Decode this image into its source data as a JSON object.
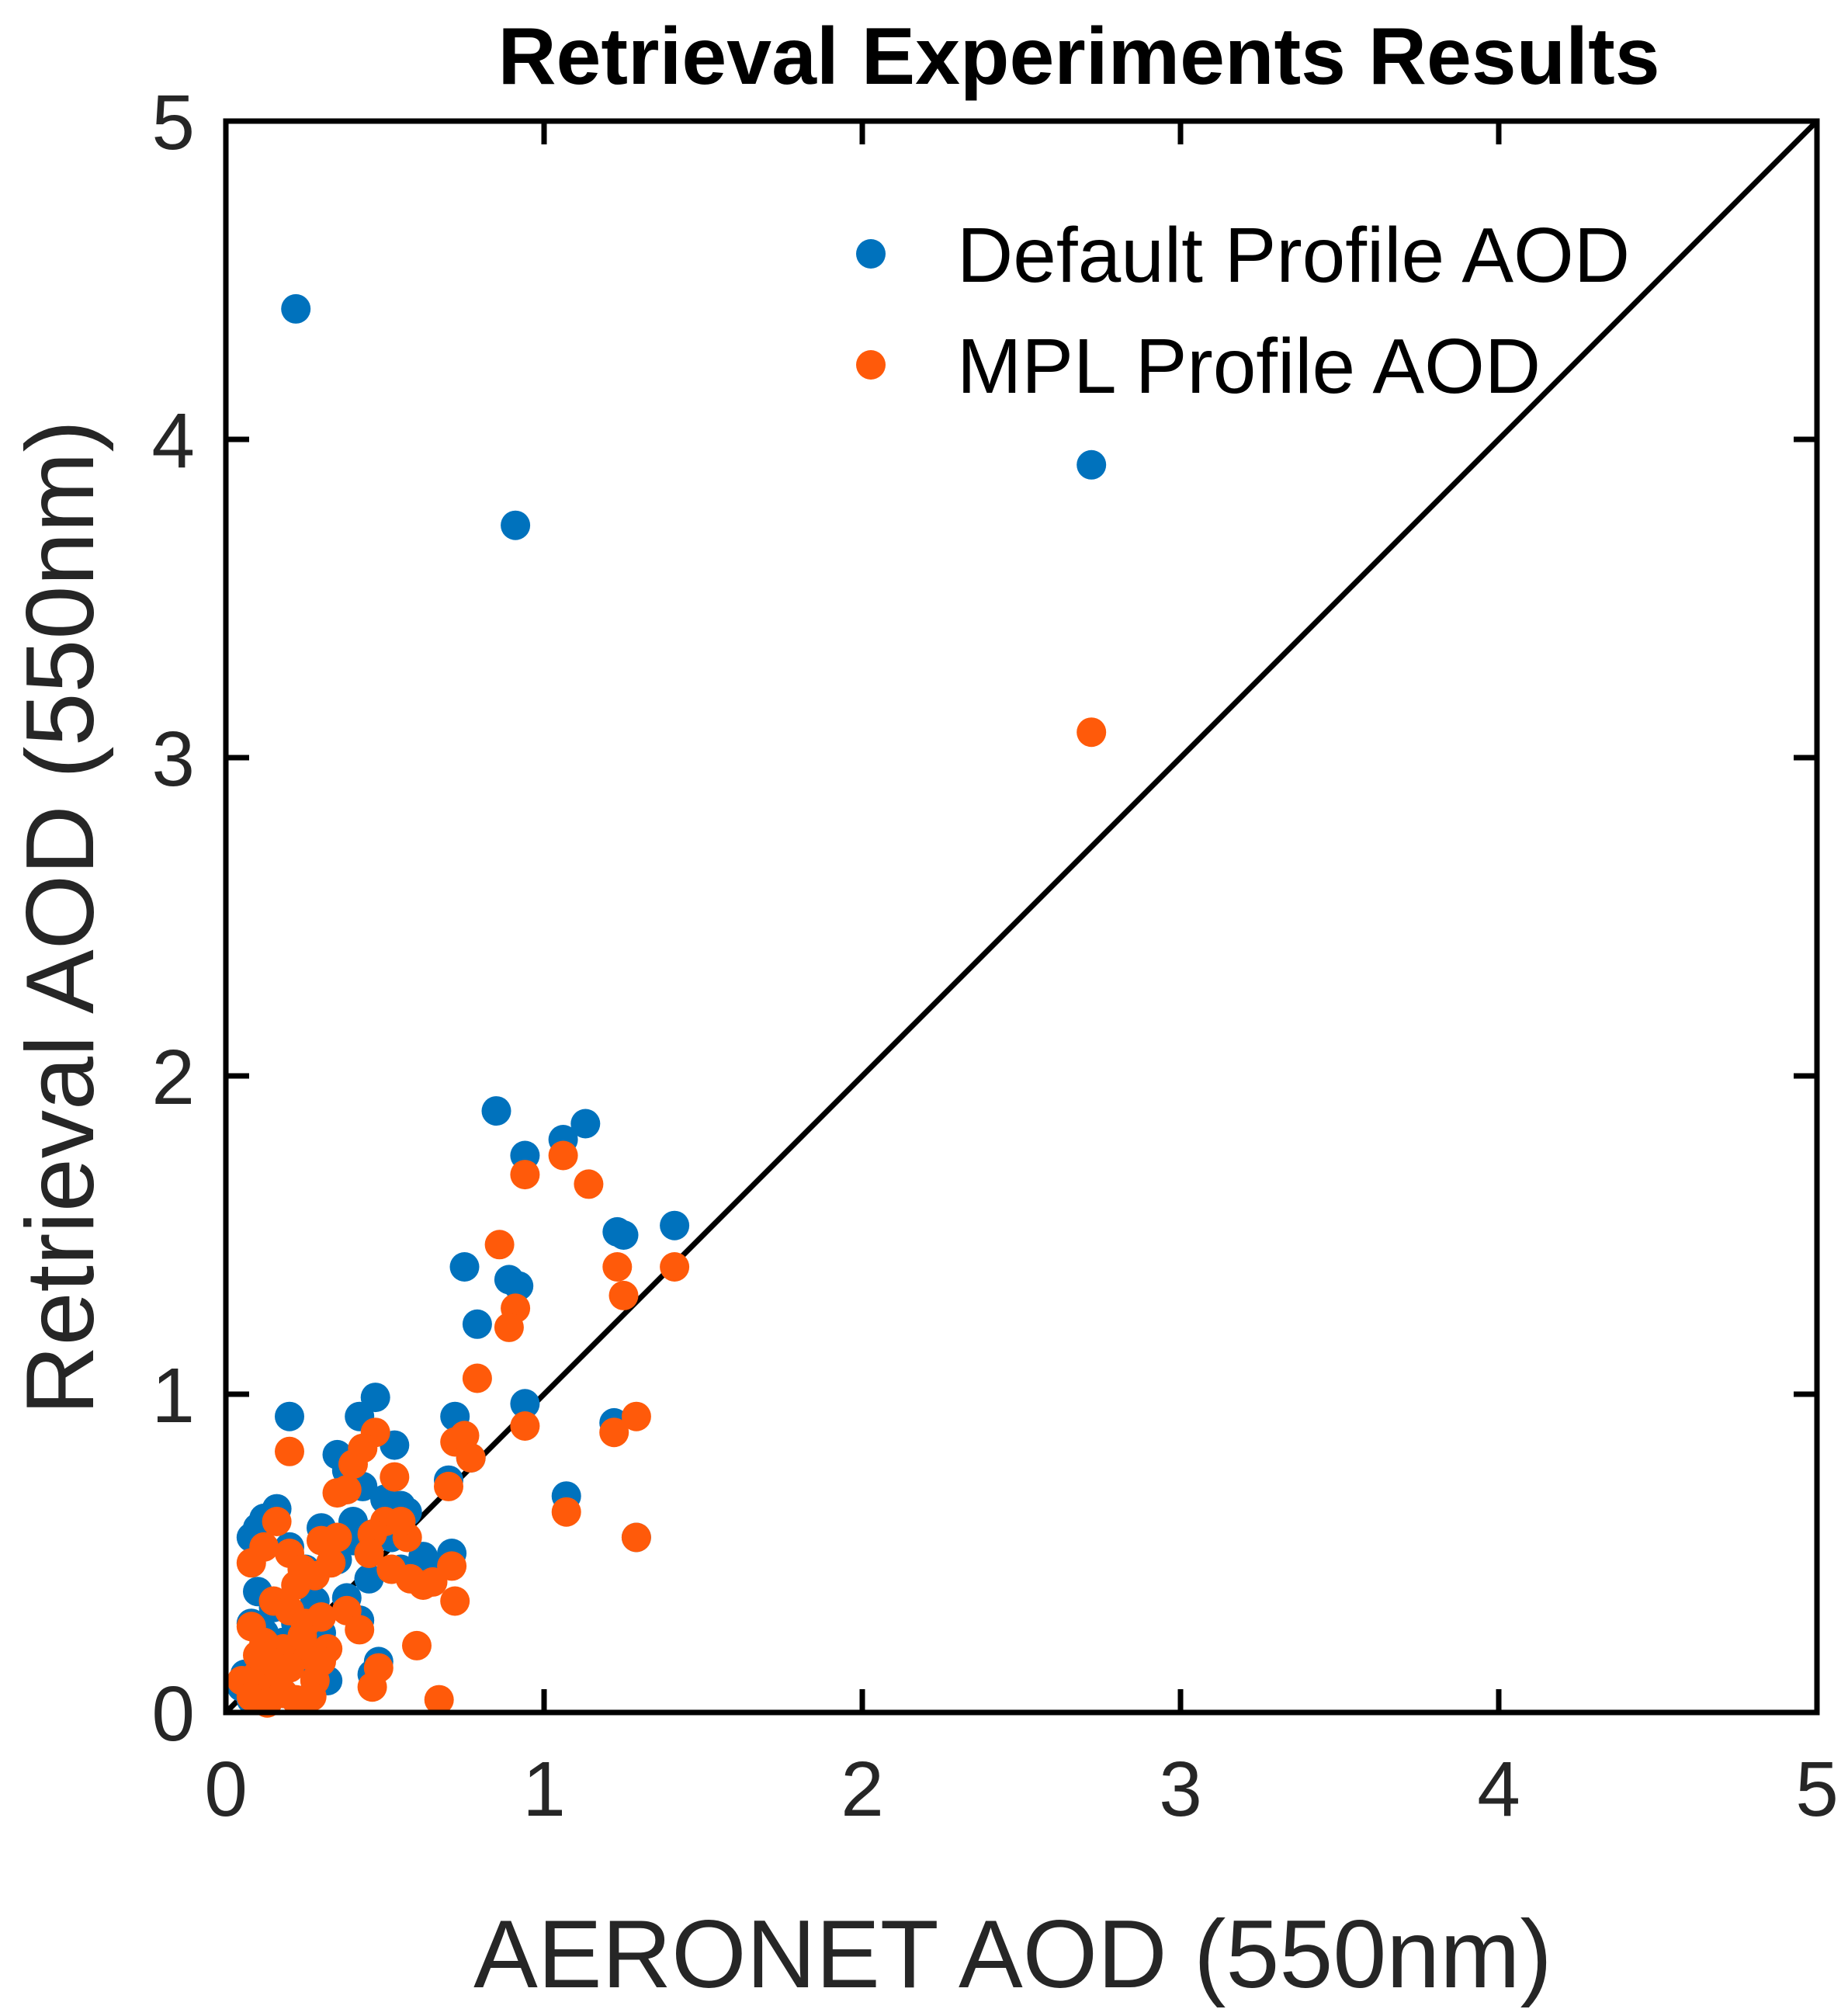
{
  "chart_data": {
    "type": "scatter",
    "title": "Retrieval Experiments Results",
    "xlabel": "AERONET AOD (550nm)",
    "ylabel": "Retrieval AOD (550nm)",
    "xlim": [
      0,
      5
    ],
    "ylim": [
      0,
      5
    ],
    "xticks": [
      "0",
      "1",
      "2",
      "3",
      "4",
      "5"
    ],
    "yticks": [
      "0",
      "1",
      "2",
      "3",
      "4",
      "5"
    ],
    "grid": false,
    "legend_position": "top-right",
    "reference_line": {
      "name": "1:1 line",
      "x": [
        0,
        5
      ],
      "y": [
        0,
        5
      ],
      "color": "#000000"
    },
    "series": [
      {
        "name": "Default Profile AOD",
        "color": "#0072BD",
        "points": [
          [
            0.22,
            4.41
          ],
          [
            0.91,
            3.73
          ],
          [
            2.72,
            3.92
          ],
          [
            0.85,
            1.89
          ],
          [
            0.94,
            1.75
          ],
          [
            1.06,
            1.8
          ],
          [
            1.13,
            1.85
          ],
          [
            1.23,
            1.51
          ],
          [
            1.25,
            1.5
          ],
          [
            1.41,
            1.53
          ],
          [
            0.75,
            1.4
          ],
          [
            0.89,
            1.36
          ],
          [
            0.92,
            1.34
          ],
          [
            0.79,
            1.22
          ],
          [
            0.94,
            0.97
          ],
          [
            0.72,
            0.93
          ],
          [
            0.7,
            0.73
          ],
          [
            0.77,
            0.8
          ],
          [
            1.22,
            0.91
          ],
          [
            1.07,
            0.68
          ],
          [
            1.29,
            0.55
          ],
          [
            0.2,
            0.93
          ],
          [
            0.47,
            0.99
          ],
          [
            0.42,
            0.93
          ],
          [
            0.53,
            0.84
          ],
          [
            0.35,
            0.81
          ],
          [
            0.38,
            0.76
          ],
          [
            0.43,
            0.71
          ],
          [
            0.5,
            0.67
          ],
          [
            0.55,
            0.65
          ],
          [
            0.12,
            0.61
          ],
          [
            0.16,
            0.64
          ],
          [
            0.08,
            0.55
          ],
          [
            0.1,
            0.58
          ],
          [
            0.2,
            0.52
          ],
          [
            0.3,
            0.58
          ],
          [
            0.4,
            0.6
          ],
          [
            0.46,
            0.56
          ],
          [
            0.52,
            0.55
          ],
          [
            0.57,
            0.63
          ],
          [
            0.25,
            0.45
          ],
          [
            0.35,
            0.48
          ],
          [
            0.45,
            0.42
          ],
          [
            0.55,
            0.45
          ],
          [
            0.6,
            0.44
          ],
          [
            0.63,
            0.46
          ],
          [
            0.71,
            0.5
          ],
          [
            0.1,
            0.38
          ],
          [
            0.15,
            0.33
          ],
          [
            0.22,
            0.3
          ],
          [
            0.28,
            0.35
          ],
          [
            0.38,
            0.36
          ],
          [
            0.08,
            0.28
          ],
          [
            0.12,
            0.25
          ],
          [
            0.18,
            0.22
          ],
          [
            0.25,
            0.2
          ],
          [
            0.3,
            0.25
          ],
          [
            0.42,
            0.29
          ],
          [
            0.48,
            0.16
          ],
          [
            0.46,
            0.12
          ],
          [
            0.06,
            0.12
          ],
          [
            0.1,
            0.08
          ],
          [
            0.15,
            0.1
          ],
          [
            0.2,
            0.15
          ],
          [
            0.28,
            0.12
          ],
          [
            0.08,
            0.04
          ],
          [
            0.12,
            0.05
          ],
          [
            0.05,
            0.08
          ],
          [
            0.18,
            0.06
          ],
          [
            0.25,
            0.04
          ],
          [
            0.32,
            0.1
          ],
          [
            0.22,
            0.28
          ],
          [
            0.27,
            0.32
          ],
          [
            0.4,
            0.54
          ],
          [
            0.62,
            0.49
          ]
        ]
      },
      {
        "name": "MPL Profile AOD",
        "color": "#FF5A0A",
        "points": [
          [
            2.72,
            3.08
          ],
          [
            0.86,
            1.47
          ],
          [
            0.94,
            1.69
          ],
          [
            1.06,
            1.75
          ],
          [
            1.14,
            1.66
          ],
          [
            1.23,
            1.4
          ],
          [
            1.25,
            1.31
          ],
          [
            1.41,
            1.4
          ],
          [
            0.91,
            1.27
          ],
          [
            0.89,
            1.21
          ],
          [
            0.79,
            1.05
          ],
          [
            0.94,
            0.9
          ],
          [
            1.22,
            0.88
          ],
          [
            1.29,
            0.93
          ],
          [
            1.07,
            0.63
          ],
          [
            1.29,
            0.55
          ],
          [
            0.7,
            0.71
          ],
          [
            0.72,
            0.85
          ],
          [
            0.75,
            0.87
          ],
          [
            0.77,
            0.8
          ],
          [
            0.2,
            0.82
          ],
          [
            0.47,
            0.88
          ],
          [
            0.43,
            0.83
          ],
          [
            0.4,
            0.78
          ],
          [
            0.38,
            0.7
          ],
          [
            0.35,
            0.69
          ],
          [
            0.53,
            0.74
          ],
          [
            0.5,
            0.6
          ],
          [
            0.46,
            0.56
          ],
          [
            0.57,
            0.55
          ],
          [
            0.55,
            0.6
          ],
          [
            0.16,
            0.6
          ],
          [
            0.12,
            0.52
          ],
          [
            0.08,
            0.47
          ],
          [
            0.2,
            0.5
          ],
          [
            0.24,
            0.45
          ],
          [
            0.22,
            0.4
          ],
          [
            0.28,
            0.43
          ],
          [
            0.3,
            0.54
          ],
          [
            0.35,
            0.55
          ],
          [
            0.33,
            0.47
          ],
          [
            0.45,
            0.5
          ],
          [
            0.52,
            0.45
          ],
          [
            0.58,
            0.42
          ],
          [
            0.62,
            0.4
          ],
          [
            0.65,
            0.41
          ],
          [
            0.71,
            0.46
          ],
          [
            0.72,
            0.35
          ],
          [
            0.15,
            0.35
          ],
          [
            0.2,
            0.32
          ],
          [
            0.25,
            0.28
          ],
          [
            0.3,
            0.3
          ],
          [
            0.38,
            0.32
          ],
          [
            0.42,
            0.26
          ],
          [
            0.08,
            0.27
          ],
          [
            0.12,
            0.22
          ],
          [
            0.18,
            0.2
          ],
          [
            0.26,
            0.18
          ],
          [
            0.32,
            0.2
          ],
          [
            0.6,
            0.21
          ],
          [
            0.48,
            0.14
          ],
          [
            0.46,
            0.08
          ],
          [
            0.67,
            0.04
          ],
          [
            0.05,
            0.1
          ],
          [
            0.1,
            0.12
          ],
          [
            0.15,
            0.08
          ],
          [
            0.2,
            0.14
          ],
          [
            0.28,
            0.1
          ],
          [
            0.08,
            0.05
          ],
          [
            0.13,
            0.03
          ],
          [
            0.18,
            0.06
          ],
          [
            0.22,
            0.04
          ],
          [
            0.27,
            0.05
          ],
          [
            0.3,
            0.16
          ],
          [
            0.14,
            0.16
          ],
          [
            0.1,
            0.18
          ],
          [
            0.24,
            0.24
          ]
        ]
      }
    ]
  }
}
